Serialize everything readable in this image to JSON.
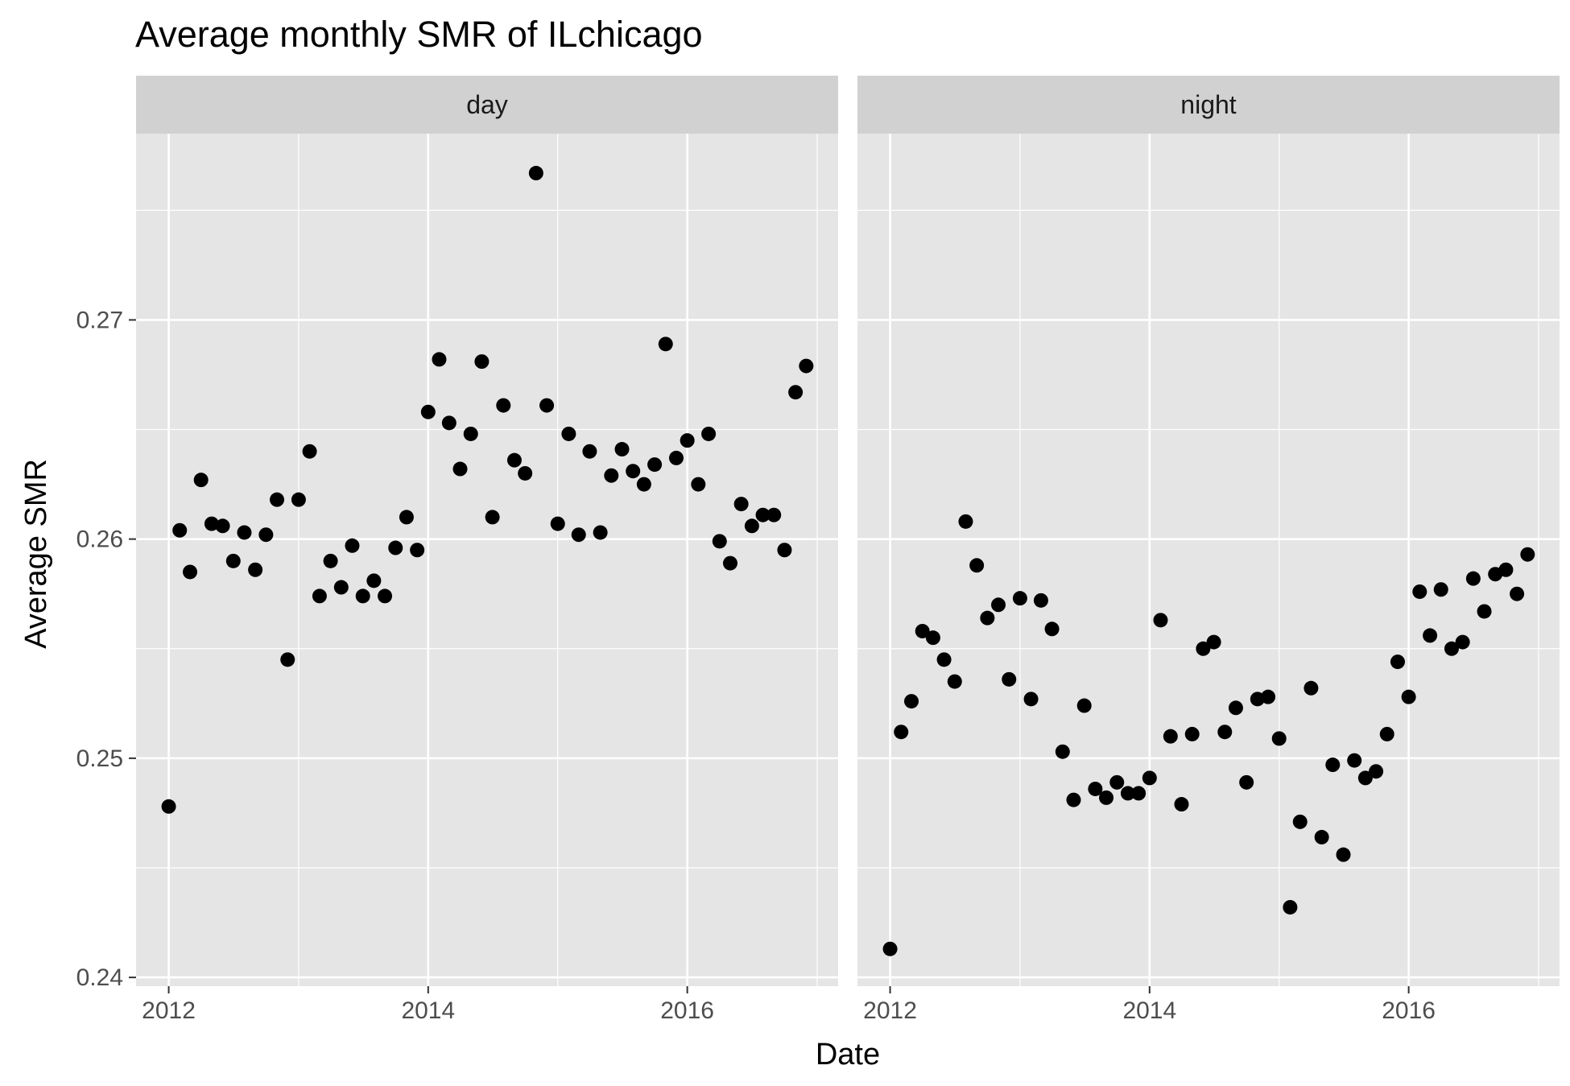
{
  "chart_data": {
    "type": "scatter",
    "title": "Average monthly SMR of ILchicago",
    "xlabel": "Date",
    "ylabel": "Average SMR",
    "x_ticks": [
      "2012",
      "2014",
      "2016"
    ],
    "y_ticks": [
      "0.24",
      "0.25",
      "0.26",
      "0.27"
    ],
    "x_range": [
      "2011-10-01",
      "2017-03-01"
    ],
    "ylim": [
      0.2396,
      0.2785
    ],
    "grid": true,
    "facets": [
      "day",
      "night"
    ],
    "series": [
      {
        "facet": "day",
        "points": [
          {
            "x": "2012-01",
            "y": 0.2478
          },
          {
            "x": "2012-02",
            "y": 0.2604
          },
          {
            "x": "2012-03",
            "y": 0.2585
          },
          {
            "x": "2012-04",
            "y": 0.2627
          },
          {
            "x": "2012-05",
            "y": 0.2607
          },
          {
            "x": "2012-06",
            "y": 0.2606
          },
          {
            "x": "2012-07",
            "y": 0.259
          },
          {
            "x": "2012-08",
            "y": 0.2603
          },
          {
            "x": "2012-09",
            "y": 0.2586
          },
          {
            "x": "2012-10",
            "y": 0.2602
          },
          {
            "x": "2012-11",
            "y": 0.2618
          },
          {
            "x": "2012-12",
            "y": 0.2545
          },
          {
            "x": "2013-01",
            "y": 0.2618
          },
          {
            "x": "2013-02",
            "y": 0.264
          },
          {
            "x": "2013-03",
            "y": 0.2574
          },
          {
            "x": "2013-04",
            "y": 0.259
          },
          {
            "x": "2013-05",
            "y": 0.2578
          },
          {
            "x": "2013-06",
            "y": 0.2597
          },
          {
            "x": "2013-07",
            "y": 0.2574
          },
          {
            "x": "2013-08",
            "y": 0.2581
          },
          {
            "x": "2013-09",
            "y": 0.2574
          },
          {
            "x": "2013-10",
            "y": 0.2596
          },
          {
            "x": "2013-11",
            "y": 0.261
          },
          {
            "x": "2013-12",
            "y": 0.2595
          },
          {
            "x": "2014-01",
            "y": 0.2658
          },
          {
            "x": "2014-02",
            "y": 0.2682
          },
          {
            "x": "2014-03",
            "y": 0.2653
          },
          {
            "x": "2014-04",
            "y": 0.2632
          },
          {
            "x": "2014-05",
            "y": 0.2648
          },
          {
            "x": "2014-06",
            "y": 0.2681
          },
          {
            "x": "2014-07",
            "y": 0.261
          },
          {
            "x": "2014-08",
            "y": 0.2661
          },
          {
            "x": "2014-09",
            "y": 0.2636
          },
          {
            "x": "2014-10",
            "y": 0.263
          },
          {
            "x": "2014-11",
            "y": 0.2767
          },
          {
            "x": "2014-12",
            "y": 0.2661
          },
          {
            "x": "2015-01",
            "y": 0.2607
          },
          {
            "x": "2015-02",
            "y": 0.2648
          },
          {
            "x": "2015-03",
            "y": 0.2602
          },
          {
            "x": "2015-04",
            "y": 0.264
          },
          {
            "x": "2015-05",
            "y": 0.2603
          },
          {
            "x": "2015-06",
            "y": 0.2629
          },
          {
            "x": "2015-07",
            "y": 0.2641
          },
          {
            "x": "2015-08",
            "y": 0.2631
          },
          {
            "x": "2015-09",
            "y": 0.2625
          },
          {
            "x": "2015-10",
            "y": 0.2634
          },
          {
            "x": "2015-11",
            "y": 0.2689
          },
          {
            "x": "2015-12",
            "y": 0.2637
          },
          {
            "x": "2016-01",
            "y": 0.2645
          },
          {
            "x": "2016-02",
            "y": 0.2625
          },
          {
            "x": "2016-03",
            "y": 0.2648
          },
          {
            "x": "2016-04",
            "y": 0.2599
          },
          {
            "x": "2016-05",
            "y": 0.2589
          },
          {
            "x": "2016-06",
            "y": 0.2616
          },
          {
            "x": "2016-07",
            "y": 0.2606
          },
          {
            "x": "2016-08",
            "y": 0.2611
          },
          {
            "x": "2016-09",
            "y": 0.2611
          },
          {
            "x": "2016-10",
            "y": 0.2595
          },
          {
            "x": "2016-11",
            "y": 0.2667
          },
          {
            "x": "2016-12",
            "y": 0.2679
          }
        ]
      },
      {
        "facet": "night",
        "points": [
          {
            "x": "2012-01",
            "y": 0.2413
          },
          {
            "x": "2012-02",
            "y": 0.2512
          },
          {
            "x": "2012-03",
            "y": 0.2526
          },
          {
            "x": "2012-04",
            "y": 0.2558
          },
          {
            "x": "2012-05",
            "y": 0.2555
          },
          {
            "x": "2012-06",
            "y": 0.2545
          },
          {
            "x": "2012-07",
            "y": 0.2535
          },
          {
            "x": "2012-08",
            "y": 0.2608
          },
          {
            "x": "2012-09",
            "y": 0.2588
          },
          {
            "x": "2012-10",
            "y": 0.2564
          },
          {
            "x": "2012-11",
            "y": 0.257
          },
          {
            "x": "2012-12",
            "y": 0.2536
          },
          {
            "x": "2013-01",
            "y": 0.2573
          },
          {
            "x": "2013-02",
            "y": 0.2527
          },
          {
            "x": "2013-03",
            "y": 0.2572
          },
          {
            "x": "2013-04",
            "y": 0.2559
          },
          {
            "x": "2013-05",
            "y": 0.2503
          },
          {
            "x": "2013-06",
            "y": 0.2481
          },
          {
            "x": "2013-07",
            "y": 0.2524
          },
          {
            "x": "2013-08",
            "y": 0.2486
          },
          {
            "x": "2013-09",
            "y": 0.2482
          },
          {
            "x": "2013-10",
            "y": 0.2489
          },
          {
            "x": "2013-11",
            "y": 0.2484
          },
          {
            "x": "2013-12",
            "y": 0.2484
          },
          {
            "x": "2014-01",
            "y": 0.2491
          },
          {
            "x": "2014-02",
            "y": 0.2563
          },
          {
            "x": "2014-03",
            "y": 0.251
          },
          {
            "x": "2014-04",
            "y": 0.2479
          },
          {
            "x": "2014-05",
            "y": 0.2511
          },
          {
            "x": "2014-06",
            "y": 0.255
          },
          {
            "x": "2014-07",
            "y": 0.2553
          },
          {
            "x": "2014-08",
            "y": 0.2512
          },
          {
            "x": "2014-09",
            "y": 0.2523
          },
          {
            "x": "2014-10",
            "y": 0.2489
          },
          {
            "x": "2014-11",
            "y": 0.2527
          },
          {
            "x": "2014-12",
            "y": 0.2528
          },
          {
            "x": "2015-01",
            "y": 0.2509
          },
          {
            "x": "2015-02",
            "y": 0.2432
          },
          {
            "x": "2015-03",
            "y": 0.2471
          },
          {
            "x": "2015-04",
            "y": 0.2532
          },
          {
            "x": "2015-05",
            "y": 0.2464
          },
          {
            "x": "2015-06",
            "y": 0.2497
          },
          {
            "x": "2015-07",
            "y": 0.2456
          },
          {
            "x": "2015-08",
            "y": 0.2499
          },
          {
            "x": "2015-09",
            "y": 0.2491
          },
          {
            "x": "2015-10",
            "y": 0.2494
          },
          {
            "x": "2015-11",
            "y": 0.2511
          },
          {
            "x": "2015-12",
            "y": 0.2544
          },
          {
            "x": "2016-01",
            "y": 0.2528
          },
          {
            "x": "2016-02",
            "y": 0.2576
          },
          {
            "x": "2016-03",
            "y": 0.2556
          },
          {
            "x": "2016-04",
            "y": 0.2577
          },
          {
            "x": "2016-05",
            "y": 0.255
          },
          {
            "x": "2016-06",
            "y": 0.2553
          },
          {
            "x": "2016-07",
            "y": 0.2582
          },
          {
            "x": "2016-08",
            "y": 0.2567
          },
          {
            "x": "2016-09",
            "y": 0.2584
          },
          {
            "x": "2016-10",
            "y": 0.2586
          },
          {
            "x": "2016-11",
            "y": 0.2575
          },
          {
            "x": "2016-12",
            "y": 0.2593
          }
        ]
      }
    ],
    "colors": {
      "panel": "#e5e5e5",
      "grid": "#ffffff",
      "strip": "#d1d1d1",
      "point": "#000000"
    }
  }
}
